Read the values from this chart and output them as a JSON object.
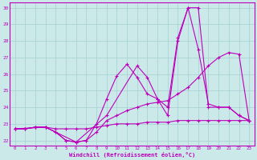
{
  "xlabel": "Windchill (Refroidissement éolien,°C)",
  "xlim": [
    -0.5,
    23.5
  ],
  "ylim": [
    21.7,
    30.3
  ],
  "yticks": [
    22,
    23,
    24,
    25,
    26,
    27,
    28,
    29,
    30
  ],
  "xticks": [
    0,
    1,
    2,
    3,
    4,
    5,
    6,
    7,
    8,
    9,
    10,
    11,
    12,
    13,
    14,
    15,
    16,
    17,
    18,
    19,
    20,
    21,
    22,
    23
  ],
  "bg_color": "#cce9e9",
  "grid_color": "#aad4d4",
  "line_color": "#bb00bb",
  "series": [
    {
      "x": [
        0,
        1,
        2,
        3,
        4,
        5,
        6,
        7,
        8,
        9,
        10,
        11,
        12,
        13,
        14,
        15,
        16,
        17,
        18,
        19,
        20,
        21,
        22,
        23
      ],
      "y": [
        22.7,
        22.7,
        22.8,
        22.8,
        22.7,
        22.7,
        22.7,
        22.7,
        22.8,
        22.9,
        23.0,
        23.0,
        23.0,
        23.1,
        23.1,
        23.1,
        23.2,
        23.2,
        23.2,
        23.2,
        23.2,
        23.2,
        23.2,
        23.2
      ]
    },
    {
      "x": [
        0,
        1,
        2,
        3,
        4,
        5,
        6,
        7,
        8,
        9,
        10,
        11,
        12,
        13,
        14,
        15,
        16,
        17,
        18,
        19,
        20,
        21,
        22,
        23
      ],
      "y": [
        22.7,
        22.7,
        22.8,
        22.8,
        22.5,
        22.0,
        21.9,
        22.0,
        22.5,
        23.2,
        23.5,
        23.8,
        24.0,
        24.2,
        24.3,
        24.4,
        24.8,
        25.2,
        25.8,
        26.5,
        27.0,
        27.3,
        27.2,
        23.2
      ]
    },
    {
      "x": [
        0,
        1,
        2,
        3,
        4,
        5,
        6,
        7,
        8,
        9,
        10,
        11,
        12,
        13,
        14,
        15,
        16,
        17,
        18,
        19,
        20,
        21,
        22,
        23
      ],
      "y": [
        22.7,
        22.7,
        22.8,
        22.8,
        22.5,
        22.0,
        21.9,
        22.0,
        23.0,
        24.5,
        25.9,
        26.6,
        25.8,
        24.8,
        24.5,
        24.0,
        28.2,
        30.0,
        30.0,
        24.0,
        24.0,
        24.0,
        23.5,
        23.2
      ]
    },
    {
      "x": [
        0,
        3,
        6,
        9,
        12,
        13,
        14,
        15,
        16,
        17,
        18,
        19,
        20,
        21,
        22,
        23
      ],
      "y": [
        22.7,
        22.8,
        21.9,
        23.5,
        26.5,
        25.8,
        24.5,
        23.5,
        28.0,
        30.0,
        27.5,
        24.2,
        24.0,
        24.0,
        23.5,
        23.2
      ]
    }
  ]
}
